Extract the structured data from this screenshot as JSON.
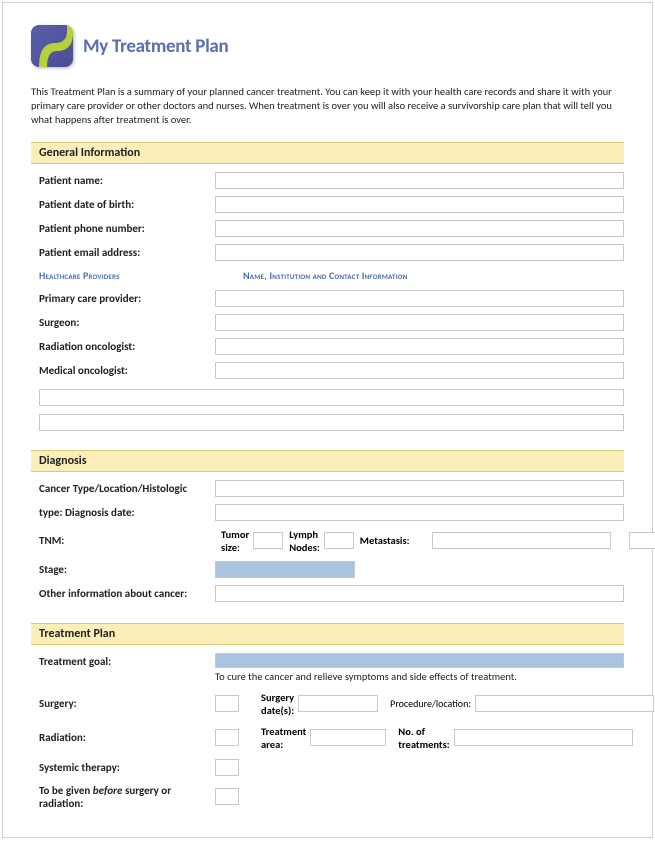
{
  "header": {
    "title": "My Treatment Plan",
    "logo_bg": "#4a4d8f",
    "logo_swish": "#b8d13a"
  },
  "intro": "This Treatment Plan is a summary of your planned cancer treatment. You can keep it with your health care records and share it with your primary care provider or other doctors and nurses. When treatment is over you will also receive a survivorship care plan that will tell you what happens after treatment is over.",
  "sections": {
    "general": {
      "title": "General Information",
      "rows": {
        "patient_name": "Patient name:",
        "dob": "Patient date of birth:",
        "phone": "Patient phone number:",
        "email": "Patient email address:"
      },
      "providers_header": {
        "col1": "Healthcare Providers",
        "col2": "Name, Institution and Contact Information"
      },
      "providers": {
        "primary": "Primary care provider:",
        "surgeon": "Surgeon:",
        "rad_onc": "Radiation oncologist:",
        "med_onc": "Medical oncologist:"
      }
    },
    "diagnosis": {
      "title": "Diagnosis",
      "rows": {
        "type": "Cancer Type/Location/Histologic",
        "date": "type: Diagnosis date:",
        "tnm": "TNM:",
        "tumor_size": "Tumor size:",
        "lymph": "Lymph Nodes:",
        "meta": "Metastasis:",
        "stage": "Stage:",
        "other": "Other information about cancer:"
      }
    },
    "treatment": {
      "title": "Treatment Plan",
      "goal_label": "Treatment goal:",
      "goal_text": "To cure the cancer and relieve symptoms and side effects of treatment.",
      "surgery": "Surgery:",
      "surgery_dates": "Surgery date(s):",
      "procedure": "Procedure/location:",
      "radiation": "Radiation:",
      "treatment_area": "Treatment area:",
      "num_treatments": "No. of treatments:",
      "systemic": "Systemic therapy:",
      "before_html": "To be given <i>before</i> surgery or radiation:"
    }
  },
  "colors": {
    "section_bg": "#fbeeb8",
    "section_border": "#d8c97a",
    "title_color": "#5a6fb0",
    "sub_header": "#4a6db0",
    "input_border": "#c8c8c8",
    "highlight_bg": "#a8c4e0"
  }
}
